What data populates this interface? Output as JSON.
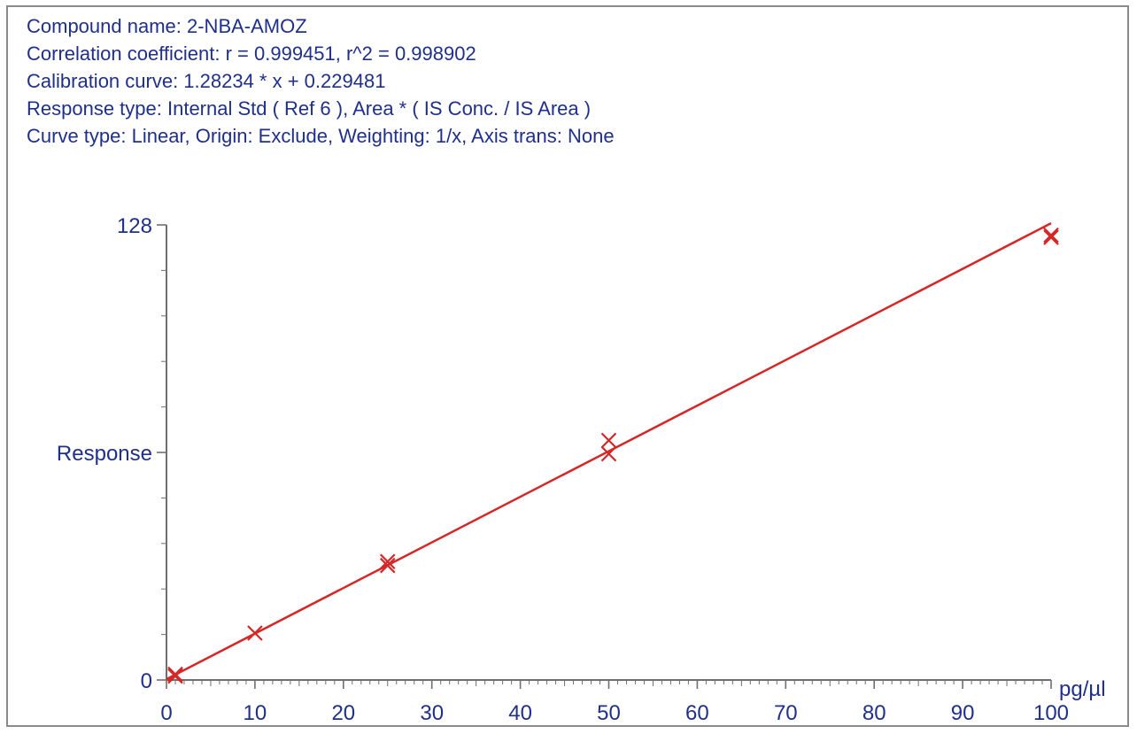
{
  "header": {
    "compound": "Compound name: 2-NBA-AMOZ",
    "correlation": "Correlation coefficient: r = 0.999451, r^2 = 0.998902",
    "calibration": "Calibration curve: 1.28234 * x + 0.229481",
    "response": "Response type: Internal Std ( Ref 6 ), Area * ( IS Conc. / IS Area )",
    "curve": "Curve type: Linear, Origin: Exclude, Weighting: 1/x, Axis trans: None"
  },
  "colors": {
    "text": "#1f2f8c",
    "series": "#d62728",
    "axis": "#6f6f6f"
  },
  "chart_data": {
    "type": "scatter",
    "xlabel": "pg/µl",
    "ylabel": "Response",
    "xlim": [
      0,
      100
    ],
    "ylim": [
      0,
      128
    ],
    "x_ticks": [
      0,
      10,
      20,
      30,
      40,
      50,
      60,
      70,
      80,
      90,
      100
    ],
    "y_tick_labels": [
      "0",
      "Response",
      "128"
    ],
    "y_tick_values": [
      0,
      64,
      128
    ],
    "grid": false,
    "fit": {
      "slope": 1.28234,
      "intercept": 0.229481,
      "x_range": [
        0,
        100
      ]
    },
    "series": [
      {
        "values": [
          {
            "x": 1,
            "y": 1.1
          },
          {
            "x": 1,
            "y": 1.6
          },
          {
            "x": 10,
            "y": 13.2
          },
          {
            "x": 25,
            "y": 32.2
          },
          {
            "x": 25,
            "y": 33.3
          },
          {
            "x": 50,
            "y": 63.6
          },
          {
            "x": 50,
            "y": 67.4
          },
          {
            "x": 100,
            "y": 125.1
          },
          {
            "x": 100,
            "y": 124.5
          }
        ]
      }
    ]
  }
}
